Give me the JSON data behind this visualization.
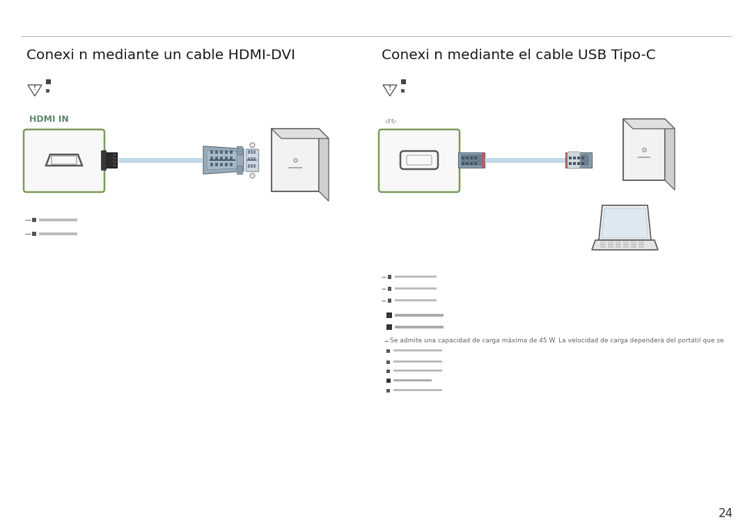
{
  "bg_color": "#ffffff",
  "page_number": "24",
  "left_title": "Conexi n mediante un cable HDMI-DVI",
  "right_title": "Conexi n mediante el cable USB Tipo-C",
  "title_fontsize": 14.5,
  "hdmi_label": "HDMI IN",
  "hdmi_label_color": "#5b8a6e",
  "box_color": "#7a9a5a",
  "note_text": "Se admite una capacidad de carga máxima de 45 W. La velocidad de carga dependerá del portátil que se",
  "small_fontsize": 6.5
}
